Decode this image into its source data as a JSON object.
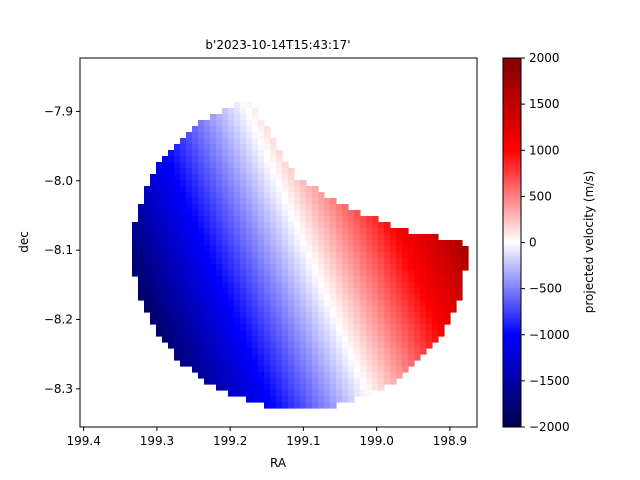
{
  "chart_data": {
    "type": "heatmap",
    "title": "b'2023-10-14T15:43:17'",
    "xlabel": "RA",
    "ylabel": "dec",
    "xlim": [
      199.405,
      198.863
    ],
    "ylim": [
      -8.355,
      -7.823
    ],
    "x_inverted": true,
    "xticks": [
      199.4,
      199.3,
      199.2,
      199.1,
      199.0,
      198.9
    ],
    "xtick_labels": [
      "199.4",
      "199.3",
      "199.2",
      "199.1",
      "199.0",
      "198.9"
    ],
    "yticks": [
      -7.9,
      -8.0,
      -8.1,
      -8.2,
      -8.3
    ],
    "ytick_labels": [
      "−7.9",
      "−8.0",
      "−8.1",
      "−8.2",
      "−8.3"
    ],
    "disk": {
      "center_ra": 199.105,
      "center_dec": -8.1,
      "radius_deg": 0.228,
      "velocity_range": [
        -1860,
        1770
      ],
      "zero_line": {
        "start": [
          199.195,
          -7.852
        ],
        "end": [
          199.008,
          -8.318
        ]
      },
      "illuminated_edge": [
        [
          199.19,
          -7.853
        ],
        [
          199.112,
          -7.993
        ],
        [
          199.03,
          -8.045
        ],
        [
          198.95,
          -8.074
        ],
        [
          198.87,
          -8.093
        ]
      ]
    },
    "colorbar": {
      "label": "projected velocity (m/s)",
      "colormap": "seismic",
      "vmin": -2000,
      "vmax": 2000,
      "ticks": [
        2000,
        1500,
        1000,
        500,
        0,
        -500,
        -1000,
        -1500,
        -2000
      ],
      "tick_labels": [
        "2000",
        "1500",
        "1000",
        "500",
        "0",
        "−500",
        "−1000",
        "−1500",
        "−2000"
      ]
    }
  }
}
